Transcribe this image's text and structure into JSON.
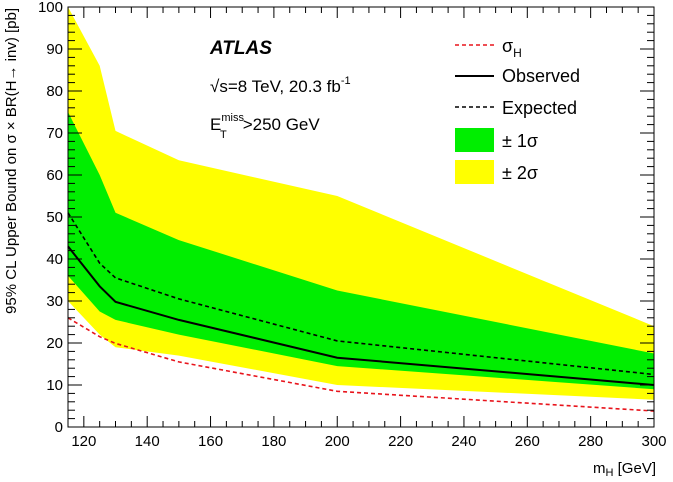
{
  "chart_data": {
    "type": "area",
    "title": "",
    "xlabel": "m_H [GeV]",
    "xlabel_main": "m",
    "xlabel_sub": "H",
    "xlabel_unit": " [GeV]",
    "ylabel": "95% CL Upper Bound on  σ × BR(H→ inv) [pb]",
    "xlim": [
      115,
      300
    ],
    "ylim": [
      0,
      100
    ],
    "xticks": [
      120,
      140,
      160,
      180,
      200,
      220,
      240,
      260,
      280,
      300
    ],
    "yticks": [
      0,
      10,
      20,
      30,
      40,
      50,
      60,
      70,
      80,
      90,
      100
    ],
    "x": [
      115,
      125,
      130,
      150,
      200,
      300
    ],
    "series": [
      {
        "name": "σ_H",
        "style": "dashed-red",
        "values": [
          26.0,
          21.5,
          19.9,
          15.5,
          8.5,
          3.8
        ]
      },
      {
        "name": "Observed",
        "style": "solid-black",
        "values": [
          43.0,
          33.5,
          29.8,
          25.5,
          16.5,
          10.0
        ]
      },
      {
        "name": "Expected",
        "style": "dashed-black",
        "values": [
          51.0,
          39.0,
          35.5,
          30.5,
          20.5,
          12.5
        ]
      },
      {
        "name": "± 1σ",
        "band": true,
        "lower": [
          36.0,
          27.5,
          25.5,
          22.0,
          14.5,
          9.0
        ],
        "upper": [
          75.0,
          60.0,
          51.0,
          44.5,
          32.5,
          17.5
        ]
      },
      {
        "name": "± 2σ",
        "band": true,
        "lower": [
          30.0,
          22.0,
          19.0,
          17.0,
          10.0,
          6.5
        ],
        "upper": [
          100.0,
          86.0,
          70.5,
          63.5,
          55.0,
          24.0
        ]
      }
    ],
    "legend_position": "top-right",
    "annotations": {
      "experiment": "ATLAS",
      "sqrt": "√",
      "energy": "s=8 TeV, 20.3 fb",
      "energy_sup": "-1",
      "cut_main": "E",
      "cut_sup": "miss",
      "cut_sub": "T",
      "cut_value": ">250 GeV"
    },
    "legend": {
      "sigma_main": "σ",
      "sigma_sub": "H",
      "observed": "Observed",
      "expected": "Expected",
      "one_sigma": "± 1σ",
      "two_sigma": "± 2σ"
    },
    "colors": {
      "one_sigma_band": "#00ee00",
      "two_sigma_band": "#ffff00",
      "sigma_h_line": "#e8141c",
      "observed_line": "#000000",
      "expected_line": "#000000"
    }
  }
}
